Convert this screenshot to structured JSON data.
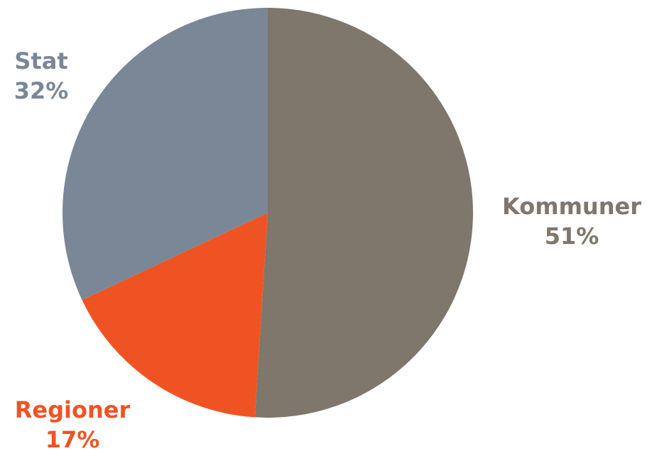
{
  "chart_data": {
    "type": "pie",
    "categories": [
      "Kommuner",
      "Regioner",
      "Stat"
    ],
    "values": [
      51,
      17,
      32
    ],
    "value_labels": [
      "51%",
      "17%",
      "32%"
    ],
    "colors": [
      "#7f766c",
      "#f05323",
      "#7a8796"
    ]
  }
}
